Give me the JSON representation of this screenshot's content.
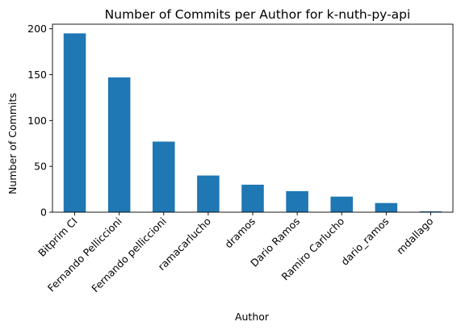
{
  "chart_data": {
    "type": "bar",
    "title": "Number of Commits per Author for k-nuth-py-api",
    "xlabel": "Author",
    "ylabel": "Number of Commits",
    "categories": [
      "Bitprim CI",
      "Fernando Pelliccioni",
      "Fernando pelliccioni",
      "ramacarlucho",
      "dramos",
      "Dario Ramos",
      "Ramiro Carlucho",
      "dario_ramos",
      "mdallago"
    ],
    "values": [
      195,
      147,
      77,
      40,
      30,
      23,
      17,
      10,
      1
    ],
    "ylim": [
      0,
      205
    ],
    "yticks": [
      0,
      50,
      100,
      150,
      200
    ],
    "bar_color": "#1f77b4",
    "grid": false,
    "legend": false
  }
}
